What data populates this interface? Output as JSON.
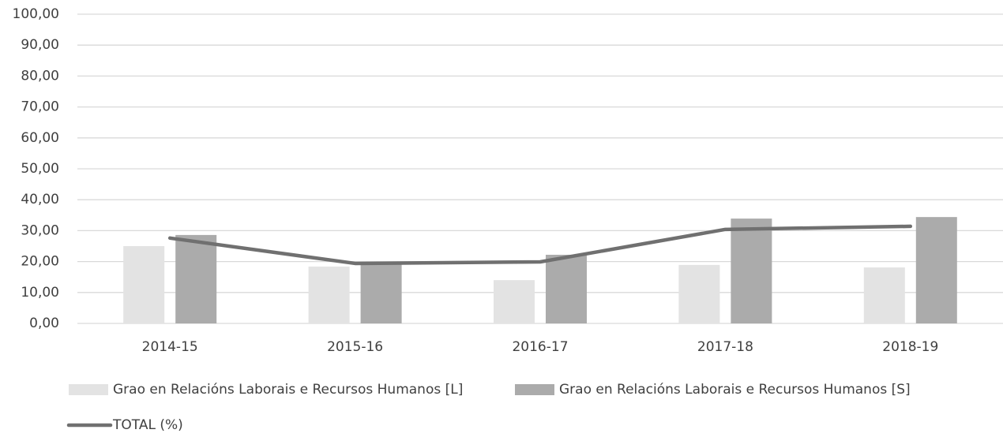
{
  "chart_data": {
    "type": "bar",
    "categories": [
      "2014-15",
      "2015-16",
      "2016-17",
      "2017-18",
      "2018-19"
    ],
    "series": [
      {
        "name": "Grao en Relacións Laborais e Recursos Humanos [L]",
        "color": "#e3e3e3",
        "type": "bar",
        "values": [
          25.0,
          18.4,
          14.0,
          18.9,
          18.1
        ]
      },
      {
        "name": "Grao en Relacións Laborais e Recursos Humanos [S]",
        "color": "#ababab",
        "type": "bar",
        "values": [
          28.6,
          19.4,
          22.2,
          33.9,
          34.4
        ]
      },
      {
        "name": "TOTAL (%)",
        "color": "#707070",
        "type": "line",
        "values": [
          27.6,
          19.4,
          19.9,
          30.4,
          31.4
        ]
      }
    ],
    "ylim": [
      0,
      100
    ],
    "yticks": [
      {
        "value": 0,
        "label": "0,00"
      },
      {
        "value": 10,
        "label": "10,00"
      },
      {
        "value": 20,
        "label": "20,00"
      },
      {
        "value": 30,
        "label": "30,00"
      },
      {
        "value": 40,
        "label": "40,00"
      },
      {
        "value": 50,
        "label": "50,00"
      },
      {
        "value": 60,
        "label": "60,00"
      },
      {
        "value": 70,
        "label": "70,00"
      },
      {
        "value": 80,
        "label": "80,00"
      },
      {
        "value": 90,
        "label": "90,00"
      },
      {
        "value": 100,
        "label": "100,00"
      }
    ],
    "grid": true
  }
}
